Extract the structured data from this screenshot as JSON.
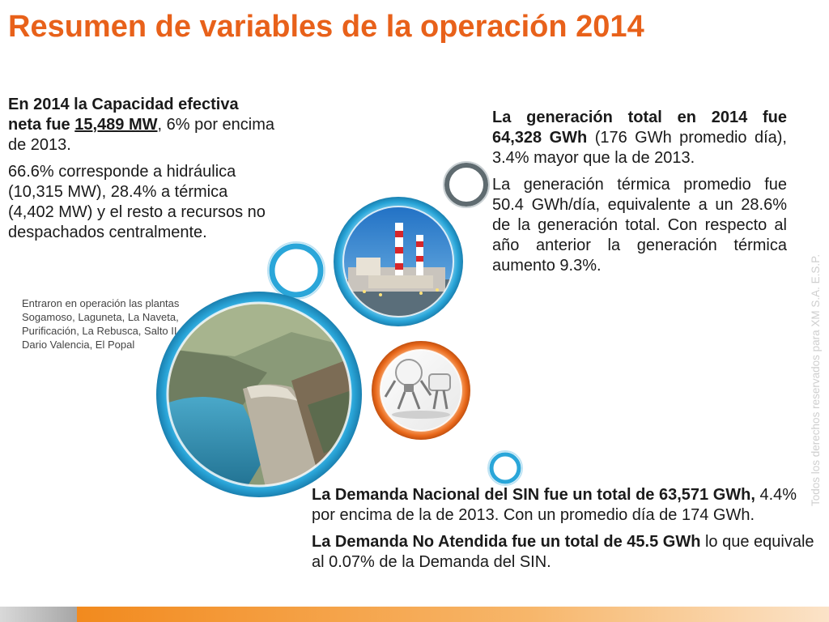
{
  "title": "Resumen de variables de la operación 2014",
  "left": {
    "p1_pre": "En 2014 la Capacidad efectiva neta fue ",
    "p1_bold": "15,489 MW",
    "p1_post": ", 6% por encima de 2013.",
    "p2": "66.6% corresponde a hidráulica (10,315 MW), 28.4% a térmica (4,402 MW) y el resto a recursos no despachados centralmente."
  },
  "caption": "Entraron en operación las plantas Sogamoso, Laguneta, La Naveta, Purificación, La Rebusca, Salto II, Dario Valencia, El Popal",
  "right": {
    "p1_bold": "La generación total en 2014 fue 64,328 GWh",
    "p1_post": " (176 GWh promedio día), 3.4% mayor que la de 2013.",
    "p2": "La generación térmica promedio fue 50.4 GWh/día, equivalente a un 28.6% de la generación total. Con respecto al año anterior la generación térmica aumento 9.3%."
  },
  "bottom": {
    "p1_bold": "La Demanda Nacional del SIN fue un total de 63,571 GWh,",
    "p1_post": " 4.4% por encima de la de 2013. Con un promedio día de 174 GWh.",
    "p2_bold": "La Demanda No Atendida fue un total de 45.5 GWh",
    "p2_post": " lo que equivale al 0.07% de la Demanda del SIN."
  },
  "side_text": "Todos los derechos reservados para XM S.A. E.S.P.",
  "images": {
    "dam": "hydroelectric-dam-photo",
    "plant": "thermal-power-plant-photo",
    "bulb": "lightbulb-plug-illustration"
  },
  "colors": {
    "title": "#e8611a",
    "ring_blue": "#2aa6d9",
    "ring_orange": "#ea6a1c",
    "ring_gray": "#6d6d6d",
    "footer_gray": "#a6a6a6",
    "footer_orange": "#f28a1e"
  }
}
